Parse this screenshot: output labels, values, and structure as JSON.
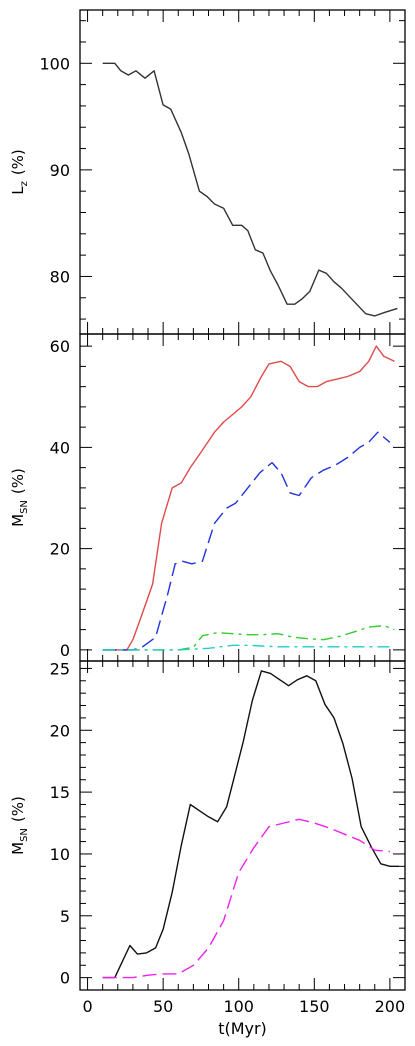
{
  "chart_data": [
    {
      "type": "line",
      "ylabel_main": "L",
      "ylabel_sub": "z",
      "ylabel_unit": "(%)",
      "xlim": [
        -5,
        210
      ],
      "ylim": [
        74.6,
        105
      ],
      "yticks": [
        80,
        90,
        100
      ],
      "grid": false,
      "series": [
        {
          "color": "#333333",
          "dash": "solid",
          "x": [
            10,
            18,
            22,
            27,
            32,
            38,
            44,
            50,
            55,
            62,
            67,
            74,
            79,
            84,
            90,
            96,
            102,
            106,
            111,
            116,
            121,
            126,
            132,
            137,
            142,
            147,
            153,
            158,
            163,
            168,
            174,
            184,
            190,
            196,
            205
          ],
          "y": [
            100,
            100,
            99.3,
            98.9,
            99.3,
            98.6,
            99.3,
            96.1,
            95.7,
            93.5,
            91.5,
            88,
            87.5,
            86.8,
            86.4,
            84.8,
            84.8,
            84.3,
            82.5,
            82.2,
            80.5,
            79.2,
            77.4,
            77.4,
            77.9,
            78.6,
            80.6,
            80.3,
            79.5,
            78.9,
            78.0,
            76.5,
            76.3,
            76.6,
            77.0
          ]
        }
      ]
    },
    {
      "type": "line",
      "ylabel_main": "M",
      "ylabel_sub": "SN",
      "ylabel_unit": "(%)",
      "xlim": [
        -5,
        210
      ],
      "ylim": [
        -2.2,
        62.4
      ],
      "yticks": [
        0,
        20,
        40,
        60
      ],
      "grid": false,
      "series": [
        {
          "color": "#e04a4a",
          "dash": "solid",
          "x": [
            10,
            26,
            30,
            36,
            43,
            49,
            56,
            62,
            68,
            75,
            84,
            90,
            96,
            102,
            108,
            115,
            120,
            128,
            134,
            140,
            146,
            152,
            158,
            165,
            172,
            180,
            186,
            191,
            196,
            203
          ],
          "y": [
            0,
            0,
            2,
            7,
            13,
            25,
            32,
            33,
            36,
            39,
            43,
            45,
            46.5,
            48,
            50,
            54,
            56.5,
            57,
            56,
            53,
            52,
            52,
            53,
            53.5,
            54,
            55,
            57,
            60,
            58,
            57
          ]
        },
        {
          "color": "#2233dd",
          "dash": "dash",
          "x": [
            10,
            30,
            36,
            45,
            53,
            58,
            63,
            69,
            76,
            84,
            92,
            98,
            106,
            114,
            122,
            128,
            134,
            140,
            148,
            156,
            164,
            172,
            180,
            186,
            192,
            200
          ],
          "y": [
            0,
            0,
            0.5,
            2.5,
            11,
            17,
            17.5,
            17,
            17.5,
            25,
            28,
            29,
            32,
            35,
            37,
            35,
            31,
            30.5,
            34,
            35.5,
            36.5,
            38,
            40,
            41,
            43,
            41
          ]
        },
        {
          "color": "#33cc33",
          "dash": "dashdot",
          "x": [
            10,
            60,
            70,
            76,
            86,
            96,
            106,
            116,
            126,
            136,
            146,
            156,
            166,
            176,
            186,
            196,
            203
          ],
          "y": [
            0,
            0,
            0.5,
            2.8,
            3.4,
            3.2,
            3.0,
            3.0,
            3.2,
            2.5,
            2.2,
            2.0,
            2.6,
            3.5,
            4.5,
            4.8,
            4.0
          ]
        },
        {
          "color": "#22cccc",
          "dash": "dashdot",
          "x": [
            10,
            60,
            80,
            96,
            106,
            126,
            156,
            186,
            203
          ],
          "y": [
            0,
            0,
            0.3,
            0.9,
            0.9,
            0.6,
            0.6,
            0.6,
            0.6
          ]
        }
      ]
    },
    {
      "type": "line",
      "ylabel_main": "M",
      "ylabel_sub": "SN",
      "ylabel_unit": "(%)",
      "xlabel": "t(Myr)",
      "xlim": [
        -5,
        210
      ],
      "ylim": [
        -1.0,
        25.6
      ],
      "yticks": [
        0,
        5,
        10,
        15,
        20,
        25
      ],
      "xticks": [
        0,
        50,
        100,
        150,
        200
      ],
      "grid": false,
      "series": [
        {
          "color": "#111111",
          "dash": "solid",
          "x": [
            10,
            18,
            28,
            33,
            39,
            45,
            50,
            56,
            62,
            68,
            74,
            80,
            86,
            92,
            97,
            103,
            109,
            115,
            121,
            127,
            133,
            139,
            145,
            151,
            157,
            163,
            169,
            175,
            181,
            188,
            194,
            200,
            206
          ],
          "y": [
            0,
            0,
            2.6,
            1.9,
            2.0,
            2.4,
            3.9,
            6.9,
            10.7,
            14.0,
            13.5,
            13.0,
            12.6,
            13.8,
            16.2,
            19.1,
            22.4,
            24.8,
            24.6,
            24.1,
            23.6,
            24.1,
            24.4,
            24.0,
            22.1,
            21.0,
            18.9,
            16.1,
            12.2,
            10.5,
            9.2,
            9.0,
            9.0
          ]
        },
        {
          "color": "#ee22ee",
          "dash": "dash",
          "x": [
            10,
            30,
            40,
            50,
            60,
            70,
            80,
            90,
            100,
            110,
            120,
            130,
            140,
            150,
            160,
            170,
            180,
            190,
            200
          ],
          "y": [
            0,
            0,
            0.2,
            0.3,
            0.3,
            1.0,
            2.4,
            4.6,
            8.5,
            10.5,
            12.2,
            12.5,
            12.8,
            12.5,
            12.1,
            11.6,
            11.1,
            10.3,
            10.2
          ]
        }
      ]
    }
  ]
}
